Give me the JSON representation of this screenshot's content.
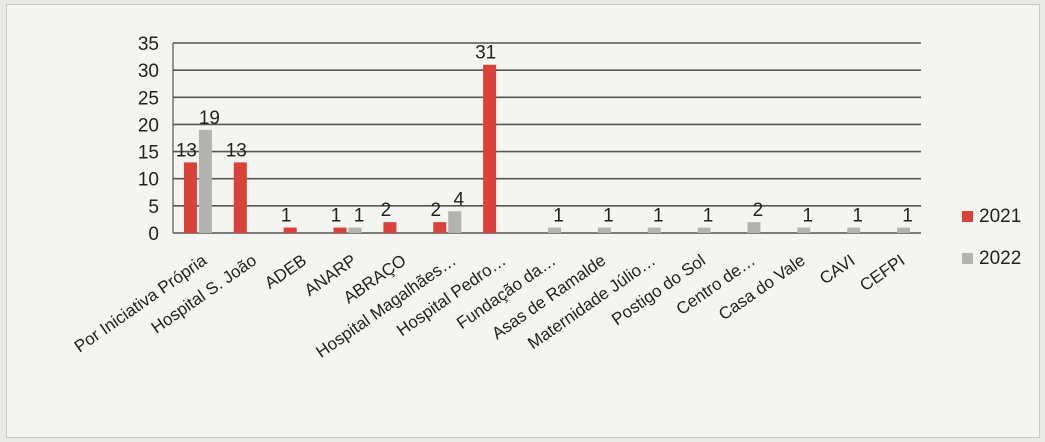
{
  "chart_data": {
    "type": "bar",
    "categories": [
      "Por Iniciativa  Própria",
      "Hospital S. João",
      "ADEB",
      "ANARP",
      "ABRAÇO",
      "Hospital Magalhães…",
      "Hospital Pedro…",
      "Fundação da…",
      "Asas de Ramalde",
      "Maternidade Júlio…",
      "Postigo do Sol",
      "Centro de…",
      "Casa do Vale",
      "CAVI",
      "CEFPI"
    ],
    "series": [
      {
        "name": "2021",
        "color": "#d9413a",
        "values": [
          13,
          13,
          1,
          1,
          2,
          2,
          31,
          null,
          null,
          null,
          null,
          null,
          null,
          null,
          null
        ]
      },
      {
        "name": "2022",
        "color": "#b3b3b0",
        "values": [
          19,
          null,
          null,
          1,
          null,
          4,
          null,
          1,
          1,
          1,
          1,
          2,
          1,
          1,
          1
        ]
      }
    ],
    "ylim": [
      0,
      35
    ],
    "yticks": [
      0,
      5,
      10,
      15,
      20,
      25,
      30,
      35
    ],
    "grid": true,
    "legend_position": "right",
    "title": "",
    "xlabel": "",
    "ylabel": ""
  }
}
